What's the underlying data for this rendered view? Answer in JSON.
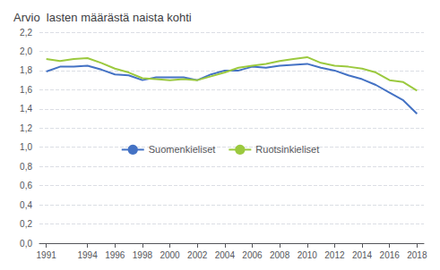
{
  "chart_data": {
    "type": "line",
    "title": "Arvio  lasten määrästä naista kohti",
    "x": [
      1991,
      1992,
      1993,
      1994,
      1995,
      1996,
      1997,
      1998,
      1999,
      2000,
      2001,
      2002,
      2003,
      2004,
      2005,
      2006,
      2007,
      2008,
      2009,
      2010,
      2011,
      2012,
      2013,
      2014,
      2015,
      2016,
      2017,
      2018
    ],
    "series": [
      {
        "name": "Suomenkieliset",
        "color": "#4472c4",
        "values": [
          1.79,
          1.84,
          1.84,
          1.85,
          1.81,
          1.76,
          1.75,
          1.7,
          1.73,
          1.73,
          1.73,
          1.7,
          1.76,
          1.8,
          1.8,
          1.84,
          1.83,
          1.85,
          1.86,
          1.87,
          1.83,
          1.8,
          1.75,
          1.71,
          1.65,
          1.57,
          1.49,
          1.35
        ]
      },
      {
        "name": "Ruotsinkieliset",
        "color": "#9bc93e",
        "values": [
          1.92,
          1.9,
          1.92,
          1.93,
          1.88,
          1.82,
          1.78,
          1.72,
          1.71,
          1.7,
          1.71,
          1.7,
          1.74,
          1.78,
          1.83,
          1.85,
          1.87,
          1.9,
          1.92,
          1.94,
          1.88,
          1.85,
          1.84,
          1.82,
          1.78,
          1.7,
          1.68,
          1.59
        ]
      }
    ],
    "xlim": [
      1990.5,
      2018.5
    ],
    "xticks": [
      1991,
      1994,
      1996,
      1998,
      2000,
      2002,
      2004,
      2006,
      2008,
      2010,
      2012,
      2014,
      2016,
      2018
    ],
    "ylim": [
      0.0,
      2.2
    ],
    "yticks": [
      {
        "value": 0.0,
        "label": "0,0"
      },
      {
        "value": 0.2,
        "label": "0,2"
      },
      {
        "value": 0.4,
        "label": "0,4"
      },
      {
        "value": 0.6,
        "label": "0,6"
      },
      {
        "value": 0.8,
        "label": "0,8"
      },
      {
        "value": 1.0,
        "label": "1,0"
      },
      {
        "value": 1.2,
        "label": "1,2"
      },
      {
        "value": 1.4,
        "label": "1,4"
      },
      {
        "value": 1.6,
        "label": "1,6"
      },
      {
        "value": 1.8,
        "label": "1,8"
      },
      {
        "value": 2.0,
        "label": "2,0"
      },
      {
        "value": 2.2,
        "label": "2,2"
      }
    ],
    "grid": true,
    "legend": "center"
  }
}
